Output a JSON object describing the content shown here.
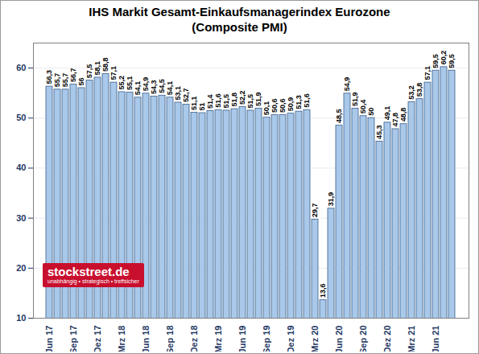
{
  "chart_data": {
    "type": "bar",
    "title": "IHS Markit Gesamt-Einkaufsmanagerindex Eurozone",
    "subtitle": "(Composite PMI)",
    "annotations": [
      "stockstreet.de",
      "unabhängig • strategisch • treffsicher"
    ],
    "categories": [
      "Jun 17",
      null,
      null,
      "Sep 17",
      null,
      null,
      "Dez 17",
      null,
      null,
      "Mrz 18",
      null,
      null,
      "Jun 18",
      null,
      null,
      "Sep 18",
      null,
      null,
      "Dez 18",
      null,
      null,
      "Mrz 19",
      null,
      null,
      "Jun 19",
      null,
      null,
      "Sep 19",
      null,
      null,
      "Dez 19",
      null,
      null,
      "Mrz 20",
      null,
      null,
      "Jun 20",
      null,
      null,
      "Sep 20",
      null,
      null,
      "Dez 20",
      null,
      null,
      "Mrz 21",
      null,
      null,
      "Jun 21",
      null,
      null
    ],
    "values": [
      56.3,
      55.7,
      55.7,
      56.7,
      56,
      57.5,
      58.1,
      58.8,
      57.1,
      55.2,
      55.1,
      54.1,
      54.9,
      54.3,
      54.5,
      54.1,
      53.1,
      52.7,
      51.1,
      51,
      51.4,
      51.6,
      51.5,
      51.8,
      52.2,
      51.5,
      51.9,
      50.1,
      50.6,
      50.6,
      50.9,
      51.3,
      51.6,
      29.7,
      13.6,
      31.9,
      48.5,
      54.9,
      51.9,
      50.4,
      50,
      45.3,
      49.1,
      47.8,
      48.8,
      53.2,
      53.8,
      57.1,
      59.5,
      60.2,
      59.5
    ],
    "value_labels": [
      "56,3",
      "55,7",
      "55,7",
      "56,7",
      "56",
      "57,5",
      "58,1",
      "58,8",
      "57,1",
      "55,2",
      "55,1",
      "54,1",
      "54,9",
      "54,3",
      "54,5",
      "54,1",
      "53,1",
      "52,7",
      "51,1",
      "51",
      "51,4",
      "51,6",
      "51,5",
      "51,8",
      "52,2",
      "51,5",
      "51,9",
      "50,1",
      "50,6",
      "50,6",
      "50,9",
      "51,3",
      "51,6",
      "29,7",
      "13,6",
      "31,9",
      "48,5",
      "54,9",
      "51,9",
      "50,4",
      "50",
      "45,3",
      "49,1",
      "47,8",
      "48,8",
      "53,2",
      "53,8",
      "57,1",
      "59,5",
      "60,2",
      "59,5"
    ],
    "color": "#a9c8ea",
    "ylim": [
      10,
      65
    ],
    "yticks": [
      10,
      20,
      30,
      40,
      50,
      60
    ],
    "grid": true,
    "data_labels": true
  }
}
